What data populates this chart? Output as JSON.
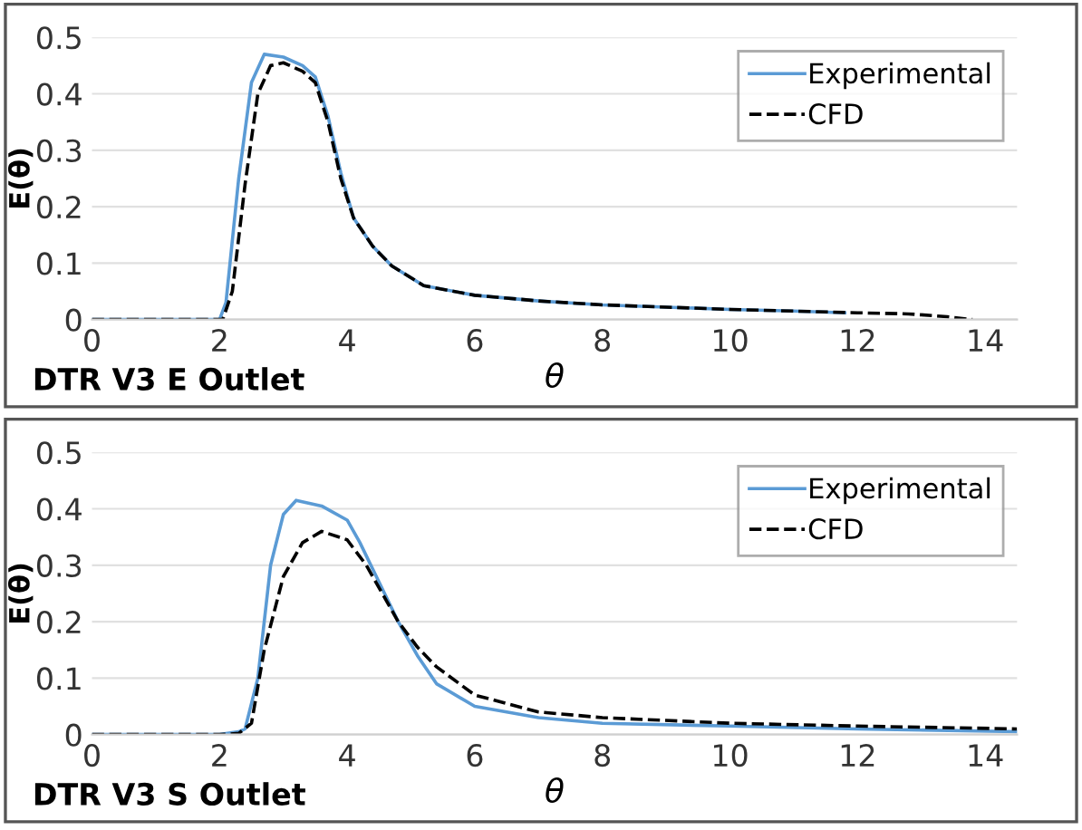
{
  "chart_data": [
    {
      "type": "line",
      "xlabel": "θ",
      "ylabel": "E(θ)",
      "annotations": [
        "DTR V3 E Outlet"
      ],
      "xlim": [
        0,
        14.5
      ],
      "ylim": [
        0,
        0.5
      ],
      "xticks": [
        0,
        2,
        4,
        6,
        8,
        10,
        12,
        14
      ],
      "yticks": [
        0,
        0.1,
        0.2,
        0.3,
        0.4,
        0.5
      ],
      "grid": "y",
      "legend": "top right",
      "series": [
        {
          "name": "Experimental",
          "color": "#5b9bd5",
          "line_style": "solid",
          "x": [
            0,
            1,
            2.0,
            2.1,
            2.3,
            2.5,
            2.7,
            3.0,
            3.3,
            3.5,
            3.7,
            3.9,
            4.1,
            4.4,
            4.7,
            5.2,
            6,
            7,
            8,
            9,
            10,
            11,
            11.8
          ],
          "values": [
            0,
            0,
            0,
            0.03,
            0.25,
            0.42,
            0.47,
            0.465,
            0.45,
            0.43,
            0.36,
            0.26,
            0.18,
            0.13,
            0.095,
            0.06,
            0.043,
            0.033,
            0.026,
            0.022,
            0.018,
            0.015,
            0.012
          ]
        },
        {
          "name": "CFD",
          "color": "#000000",
          "line_style": "dashed",
          "x": [
            0,
            1,
            2.05,
            2.2,
            2.4,
            2.6,
            2.8,
            3.0,
            3.3,
            3.5,
            3.7,
            3.9,
            4.1,
            4.4,
            4.7,
            5.2,
            6,
            7,
            8,
            9,
            10,
            11,
            12,
            12.8,
            13.4,
            13.8
          ],
          "values": [
            0,
            0,
            0,
            0.05,
            0.24,
            0.4,
            0.45,
            0.455,
            0.44,
            0.42,
            0.35,
            0.25,
            0.18,
            0.13,
            0.095,
            0.06,
            0.043,
            0.033,
            0.026,
            0.022,
            0.018,
            0.015,
            0.012,
            0.01,
            0.005,
            0
          ]
        }
      ]
    },
    {
      "type": "line",
      "xlabel": "θ",
      "ylabel": "E(θ)",
      "annotations": [
        "DTR V3 S Outlet"
      ],
      "xlim": [
        0,
        14.5
      ],
      "ylim": [
        0,
        0.5
      ],
      "xticks": [
        0,
        2,
        4,
        6,
        8,
        10,
        12,
        14
      ],
      "yticks": [
        0,
        0.1,
        0.2,
        0.3,
        0.4,
        0.5
      ],
      "grid": "y",
      "legend": "top right",
      "series": [
        {
          "name": "Experimental",
          "color": "#5b9bd5",
          "line_style": "solid",
          "x": [
            0,
            1,
            2.0,
            2.3,
            2.4,
            2.6,
            2.8,
            3.0,
            3.2,
            3.6,
            4.0,
            4.2,
            4.5,
            4.8,
            5.1,
            5.4,
            6,
            7,
            8,
            10,
            12,
            14.5
          ],
          "values": [
            0,
            0,
            0,
            0.005,
            0.01,
            0.1,
            0.3,
            0.39,
            0.415,
            0.405,
            0.38,
            0.34,
            0.27,
            0.2,
            0.14,
            0.09,
            0.05,
            0.03,
            0.02,
            0.015,
            0.01,
            0.005
          ]
        },
        {
          "name": "CFD",
          "color": "#000000",
          "line_style": "dashed",
          "x": [
            0,
            1,
            2.0,
            2.3,
            2.5,
            2.7,
            3.0,
            3.3,
            3.6,
            4.0,
            4.3,
            4.6,
            4.8,
            5.1,
            5.4,
            6,
            7,
            8,
            10,
            12,
            14.5
          ],
          "values": [
            0,
            0,
            0,
            0.002,
            0.02,
            0.15,
            0.28,
            0.34,
            0.36,
            0.345,
            0.3,
            0.24,
            0.2,
            0.155,
            0.12,
            0.07,
            0.04,
            0.03,
            0.02,
            0.015,
            0.01
          ]
        }
      ]
    }
  ]
}
